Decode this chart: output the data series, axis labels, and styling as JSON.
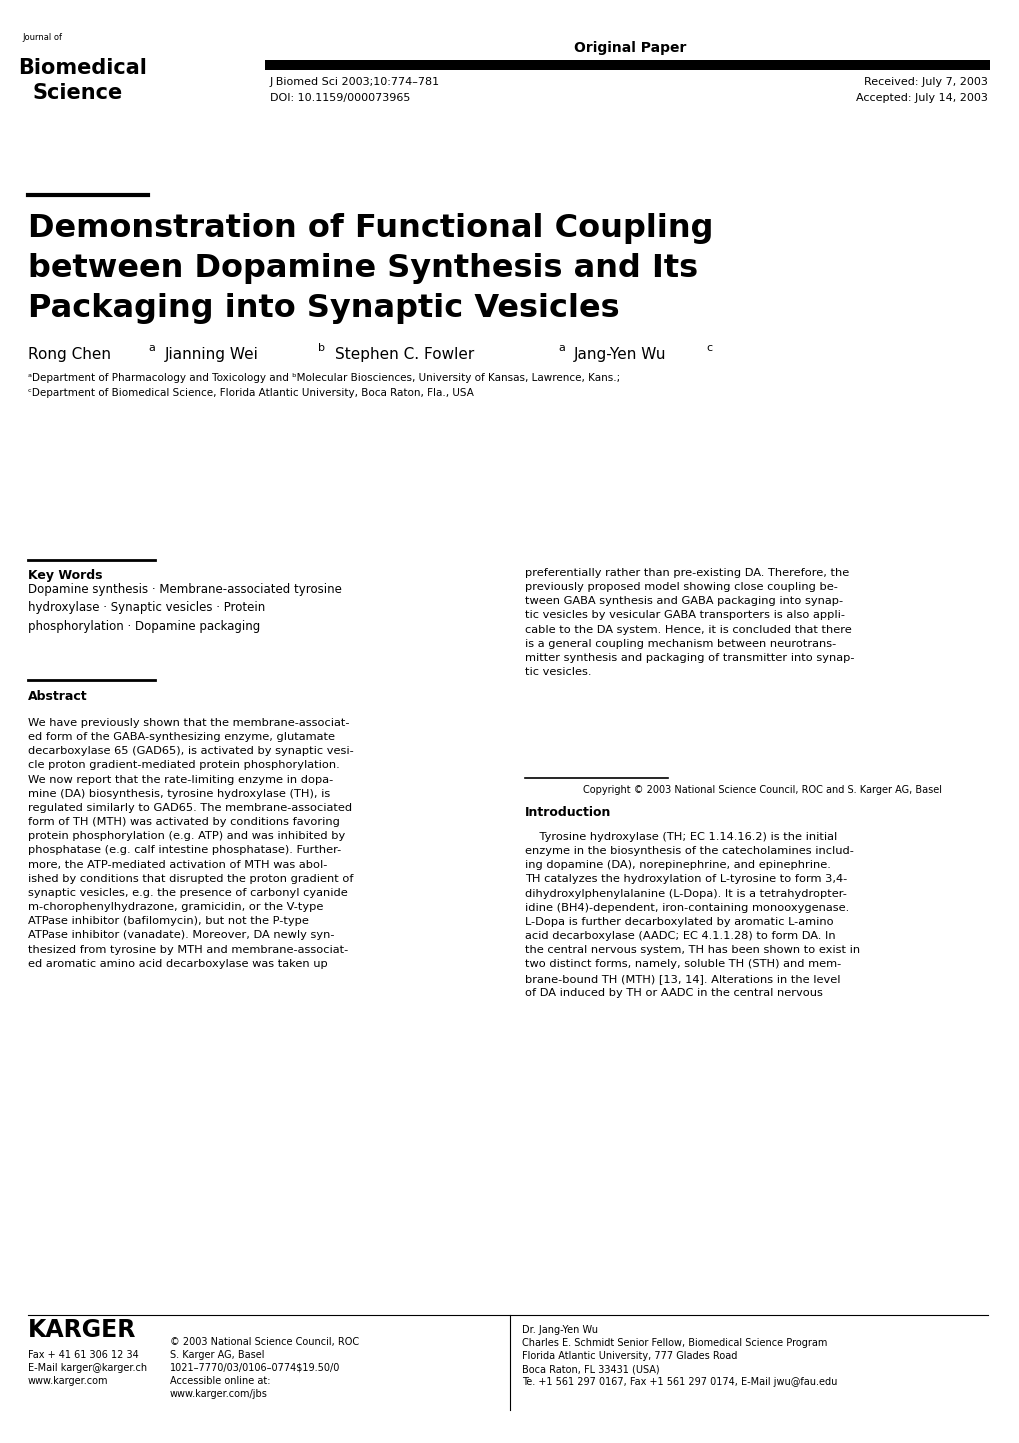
{
  "bg_color": "#ffffff",
  "header_label": "Original Paper",
  "journal_name_small": "Journal of",
  "journal_name_line1": "Biomedical",
  "journal_name_line2": "Science",
  "journal_ref": "J Biomed Sci 2003;10:774–781",
  "journal_doi": "DOI: 10.1159/000073965",
  "received": "Received: July 7, 2003",
  "accepted": "Accepted: July 14, 2003",
  "title_line1": "Demonstration of Functional Coupling",
  "title_line2": "between Dopamine Synthesis and Its",
  "title_line3": "Packaging into Synaptic Vesicles",
  "affil1": "aDepartment of Pharmacology and Toxicology and bMolecular Biosciences, University of Kansas, Lawrence, Kans.;",
  "affil2": "cDepartment of Biomedical Science, Florida Atlantic University, Boca Raton, Fla., USA",
  "kw_heading": "Key Words",
  "kw_text": "Dopamine synthesis · Membrane-associated tyrosine\nhydroxylase · Synaptic vesicles · Protein\nphosphorylation · Dopamine packaging",
  "abs_heading": "Abstract",
  "abs_text": "We have previously shown that the membrane-associat-\ned form of the GABA-synthesizing enzyme, glutamate\ndecarboxylase 65 (GAD65), is activated by synaptic vesi-\ncle proton gradient-mediated protein phosphorylation.\nWe now report that the rate-limiting enzyme in dopa-\nmine (DA) biosynthesis, tyrosine hydroxylase (TH), is\nregulated similarly to GAD65. The membrane-associated\nform of TH (MTH) was activated by conditions favoring\nprotein phosphorylation (e.g. ATP) and was inhibited by\nphosphatase (e.g. calf intestine phosphatase). Further-\nmore, the ATP-mediated activation of MTH was abol-\nished by conditions that disrupted the proton gradient of\nsynaptic vesicles, e.g. the presence of carbonyl cyanide\nm-chorophenylhydrazone, gramicidin, or the V-type\nATPase inhibitor (bafilomycin), but not the P-type\nATPase inhibitor (vanadate). Moreover, DA newly syn-\nthesized from tyrosine by MTH and membrane-associat-\ned aromatic amino acid decarboxylase was taken up",
  "right_col_text": "preferentially rather than pre-existing DA. Therefore, the\npreviously proposed model showing close coupling be-\ntween GABA synthesis and GABA packaging into synap-\ntic vesicles by vesicular GABA transporters is also appli-\ncable to the DA system. Hence, it is concluded that there\nis a general coupling mechanism between neurotrans-\nmitter synthesis and packaging of transmitter into synap-\ntic vesicles.",
  "copyright_text": "Copyright © 2003 National Science Council, ROC and S. Karger AG, Basel",
  "intro_heading": "Introduction",
  "intro_text1": "    Tyrosine hydroxylase (TH; EC 1.14.16.2) is the initial\nenzyme in the biosynthesis of the catecholamines includ-\ning dopamine (DA), norepinephrine, and epinephrine.\nTH catalyzes the hydroxylation of L-tyrosine to form 3,4-\ndihydroxylphenylalanine (L-Dopa). It is a tetrahydropter-\nidine (BH4)-dependent, iron-containing monooxygenase.\nL-Dopa is further decarboxylated by aromatic L-amino\nacid decarboxylase (AADC; EC 4.1.1.28) to form DA. In\nthe central nervous system, TH has been shown to exist in\ntwo distinct forms, namely, soluble TH (STH) and mem-\nbrane-bound TH (MTH) [13, 14]. Alterations in the level\nof DA induced by TH or AADC in the central nervous",
  "karger_name": "KARGER",
  "karger_fax": "Fax + 41 61 306 12 34",
  "karger_email": "E-Mail karger@karger.ch",
  "karger_web": "www.karger.com",
  "karger_copy": "© 2003 National Science Council, ROC",
  "karger_sk": "S. Karger AG, Basel",
  "karger_issn": "1021–7770/03/0106–0774$19.50/0",
  "karger_access": "Accessible online at:",
  "karger_url": "www.karger.com/jbs",
  "dr_name": "Dr. Jang-Yen Wu",
  "dr_title": "Charles E. Schmidt Senior Fellow, Biomedical Science Program",
  "dr_addr1": "Florida Atlantic University, 777 Glades Road",
  "dr_addr2": "Boca Raton, FL 33431 (USA)",
  "dr_contact": "Te. +1 561 297 0167, Fax +1 561 297 0174, E-Mail jwu@fau.edu"
}
